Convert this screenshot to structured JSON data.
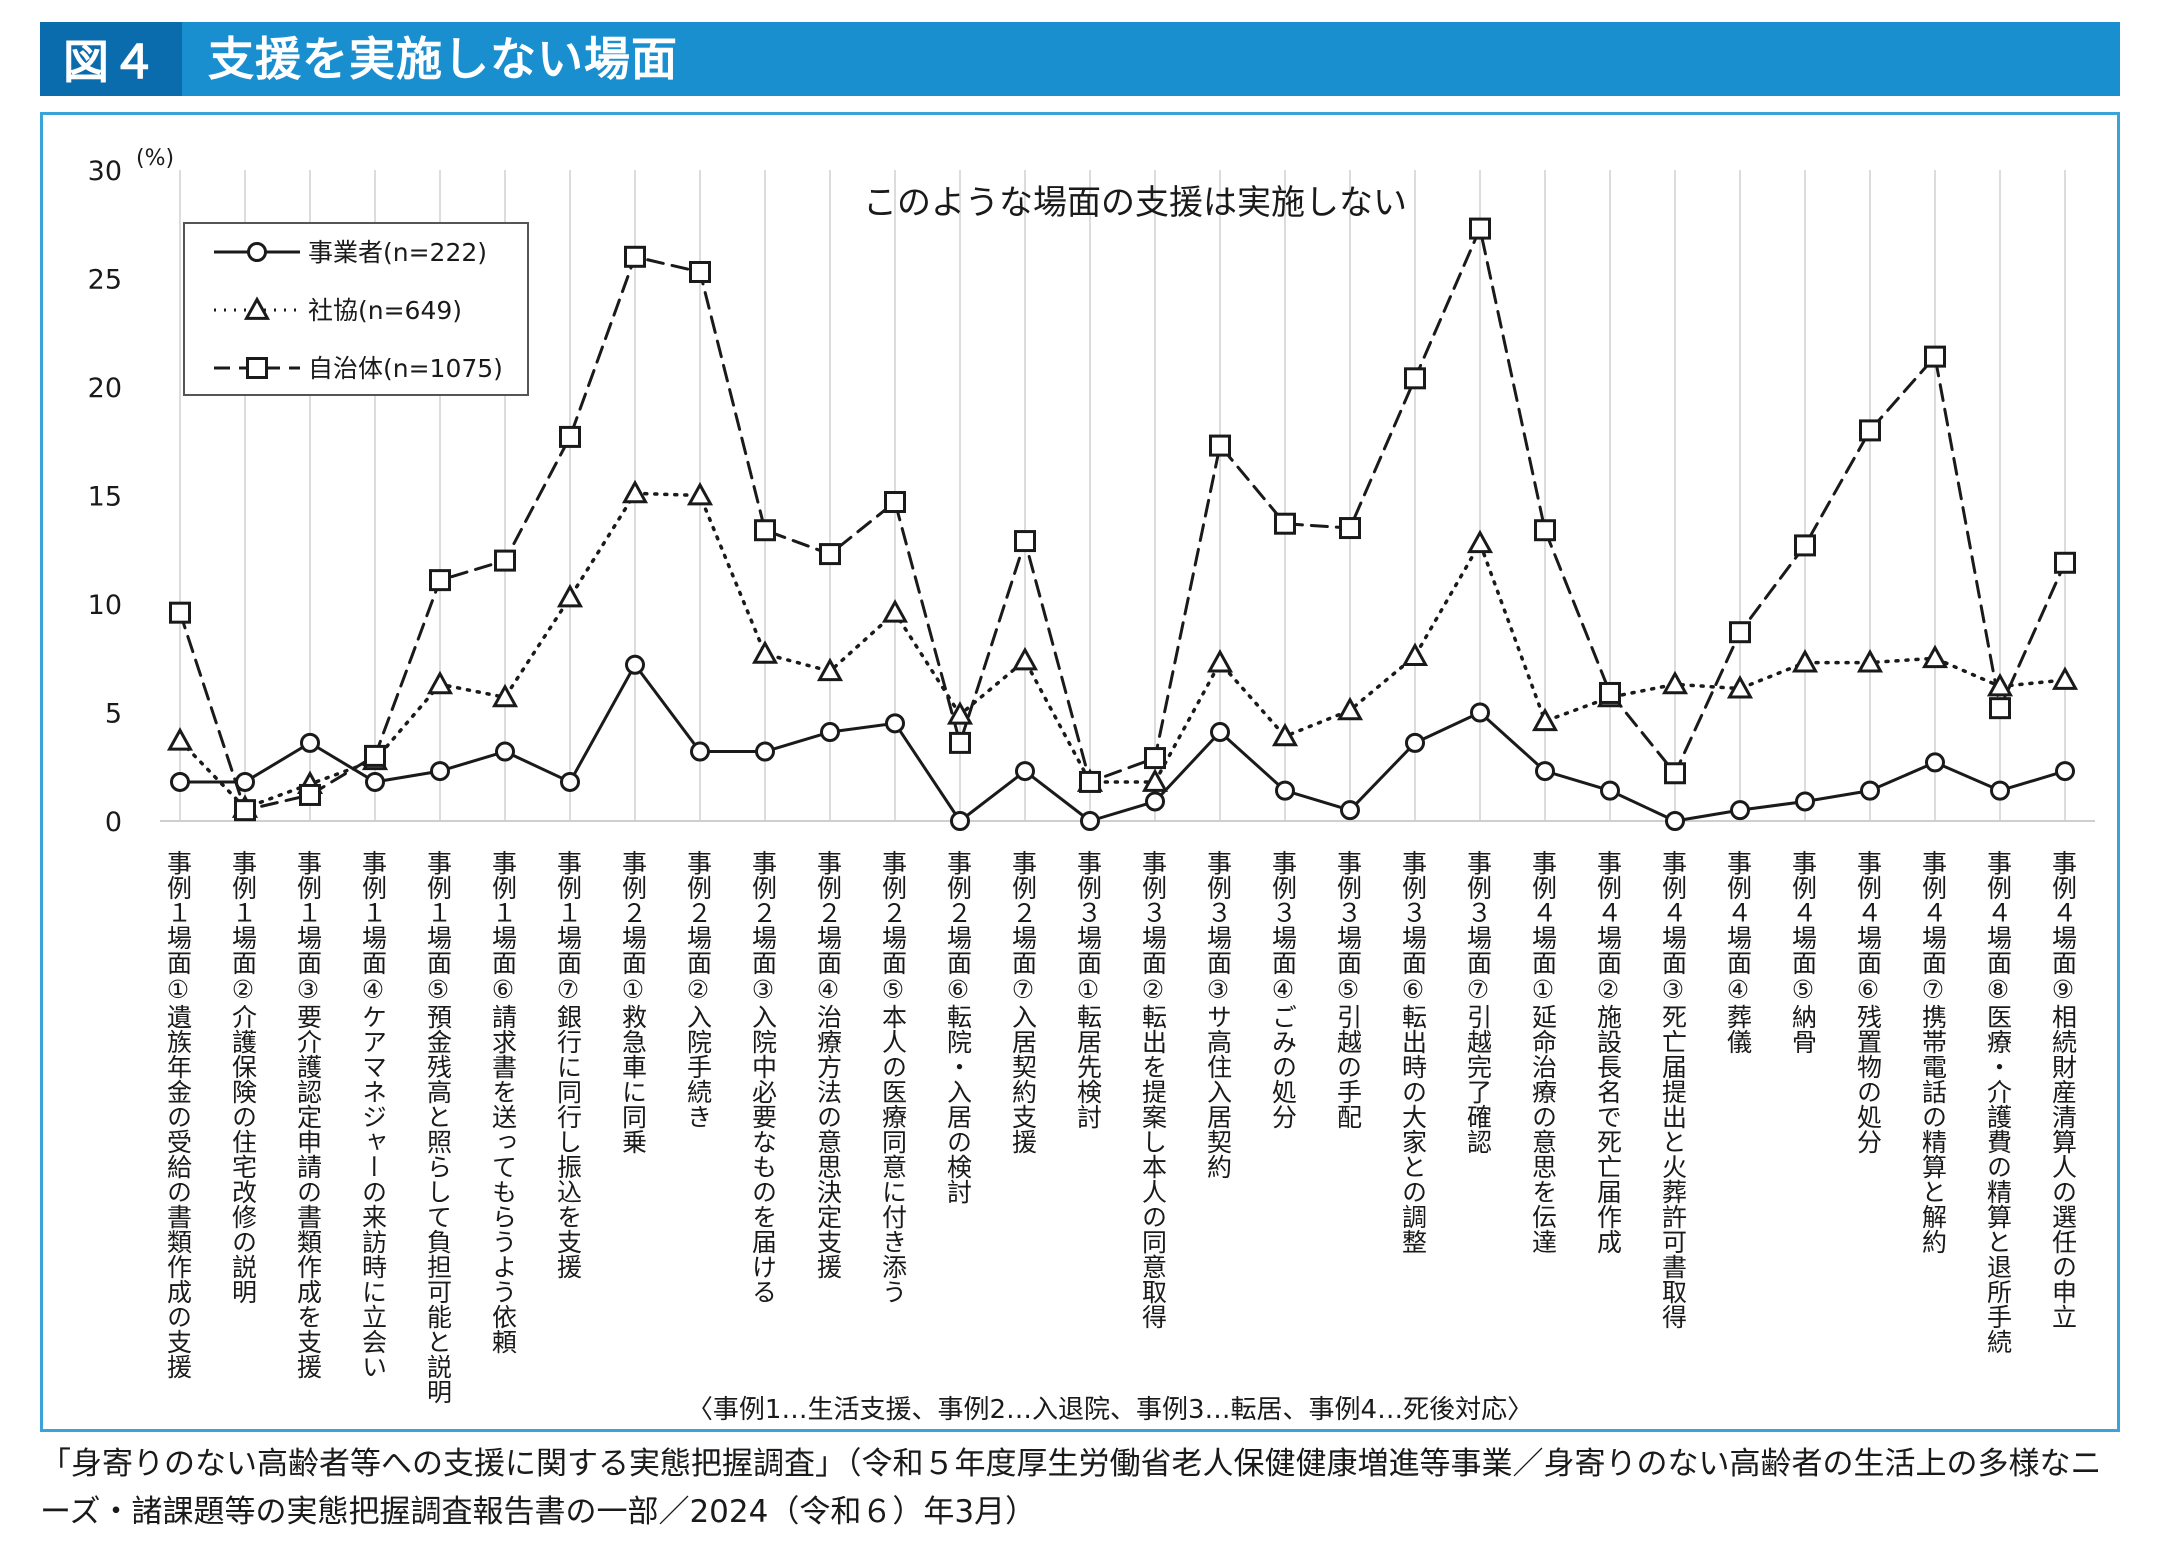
{
  "figure": {
    "tag": "図４",
    "title": "支援を実施しない場面"
  },
  "source_note": "「身寄りのない高齢者等への支援に関する実態把握調査」（令和５年度厚生労働省老人保健健康増進等事業／身寄りのない高齢者の生活上の多様なニーズ・諸課題等の実態把握調査報告書の一部／2024（令和６）年3月）",
  "chart_data": {
    "type": "line",
    "title": "このような場面の支援は実施しない",
    "y_unit": "(%)",
    "ylim": [
      0,
      30
    ],
    "yticks": [
      0,
      5,
      10,
      15,
      20,
      25,
      30
    ],
    "grid": "vertical",
    "legend_position": "top-left",
    "categories": [
      "事例１場面①遺族年金の受給の書類作成の支援",
      "事例１場面②介護保険の住宅改修の説明",
      "事例１場面③要介護認定申請の書類作成を支援",
      "事例１場面④ケアマネジャーの来訪時に立会い",
      "事例１場面⑤預金残高と照らして負担可能と説明",
      "事例１場面⑥請求書を送ってもらうよう依頼",
      "事例１場面⑦銀行に同行し振込を支援",
      "事例２場面①救急車に同乗",
      "事例２場面②入院手続き",
      "事例２場面③入院中必要なものを届ける",
      "事例２場面④治療方法の意思決定支援",
      "事例２場面⑤本人の医療同意に付き添う",
      "事例２場面⑥転院・入居の検討",
      "事例２場面⑦入居契約支援",
      "事例３場面①転居先検討",
      "事例３場面②転出を提案し本人の同意取得",
      "事例３場面③サ高住入居契約",
      "事例３場面④ごみの処分",
      "事例３場面⑤引越の手配",
      "事例３場面⑥転出時の大家との調整",
      "事例３場面⑦引越完了確認",
      "事例４場面①延命治療の意思を伝達",
      "事例４場面②施設長名で死亡届作成",
      "事例４場面③死亡届提出と火葬許可書取得",
      "事例４場面④葬儀",
      "事例４場面⑤納骨",
      "事例４場面⑥残置物の処分",
      "事例４場面⑦携帯電話の精算と解約",
      "事例４場面⑧医療・介護費の精算と退所手続",
      "事例４場面⑨相続財産清算人の選任の申立"
    ],
    "series": [
      {
        "name": "事業者(n=222)",
        "line_style": "solid",
        "marker": "circle",
        "color": "#1a1a1a",
        "values": [
          1.8,
          1.8,
          3.6,
          1.8,
          2.3,
          3.2,
          1.8,
          7.2,
          3.2,
          3.2,
          4.1,
          4.5,
          0.0,
          2.3,
          0.0,
          0.9,
          4.1,
          1.4,
          0.5,
          3.6,
          5.0,
          2.3,
          1.4,
          0.0,
          0.5,
          0.9,
          1.4,
          2.7,
          1.4,
          2.3
        ]
      },
      {
        "name": "社協(n=649)",
        "line_style": "dotted",
        "marker": "triangle",
        "color": "#1a1a1a",
        "values": [
          3.7,
          0.6,
          1.7,
          2.8,
          6.3,
          5.7,
          10.3,
          15.1,
          15.0,
          7.7,
          6.9,
          9.6,
          4.9,
          7.4,
          1.8,
          1.8,
          7.3,
          3.9,
          5.1,
          7.6,
          12.8,
          4.6,
          5.7,
          6.3,
          6.1,
          7.3,
          7.3,
          7.5,
          6.2,
          6.5
        ]
      },
      {
        "name": "自治体(n=1075)",
        "line_style": "dashed",
        "marker": "square",
        "color": "#1a1a1a",
        "values": [
          9.6,
          0.5,
          1.2,
          3.0,
          11.1,
          12.0,
          17.7,
          26.0,
          25.3,
          13.4,
          12.3,
          14.7,
          3.6,
          12.9,
          1.8,
          2.9,
          17.3,
          13.7,
          13.5,
          20.4,
          27.3,
          13.4,
          5.9,
          2.2,
          8.7,
          12.7,
          18.0,
          21.4,
          5.2,
          11.9
        ]
      }
    ],
    "footnote": "〈事例1…生活支援、事例2…入退院、事例3…転居、事例4…死後対応〉"
  }
}
